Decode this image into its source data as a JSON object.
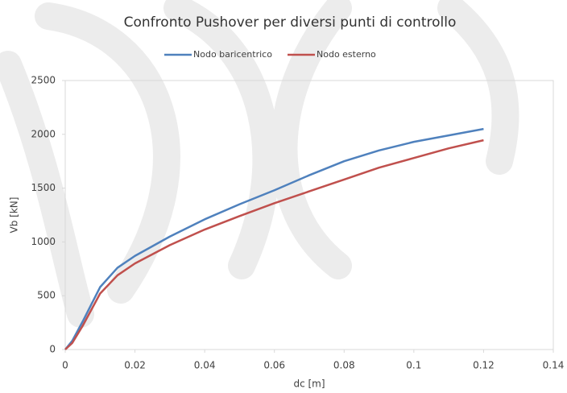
{
  "chart_data": {
    "type": "line",
    "title": "Confronto Pushover per diversi punti di controllo",
    "x_label": "dc [m]",
    "y_label": "Vb [kN]",
    "x": [
      0,
      0.002,
      0.005,
      0.01,
      0.015,
      0.02,
      0.03,
      0.04,
      0.05,
      0.06,
      0.07,
      0.08,
      0.09,
      0.1,
      0.11,
      0.12
    ],
    "series": [
      {
        "name": "Nodo baricentrico",
        "color": "#4f81bd",
        "values": [
          0,
          80,
          260,
          580,
          760,
          870,
          1050,
          1210,
          1350,
          1480,
          1620,
          1750,
          1850,
          1930,
          1990,
          2050
        ]
      },
      {
        "name": "Nodo  esterno",
        "color": "#c0504d",
        "values": [
          0,
          60,
          220,
          520,
          690,
          800,
          970,
          1115,
          1240,
          1360,
          1470,
          1580,
          1690,
          1780,
          1870,
          1945
        ]
      }
    ],
    "xlim": [
      0,
      0.14
    ],
    "xticks": [
      0,
      0.02,
      0.04,
      0.06,
      0.08,
      0.1,
      0.12,
      0.14
    ],
    "ylim": [
      0,
      2500
    ],
    "yticks": [
      0,
      500,
      1000,
      1500,
      2000,
      2500
    ],
    "grid": false,
    "legend": "top"
  }
}
